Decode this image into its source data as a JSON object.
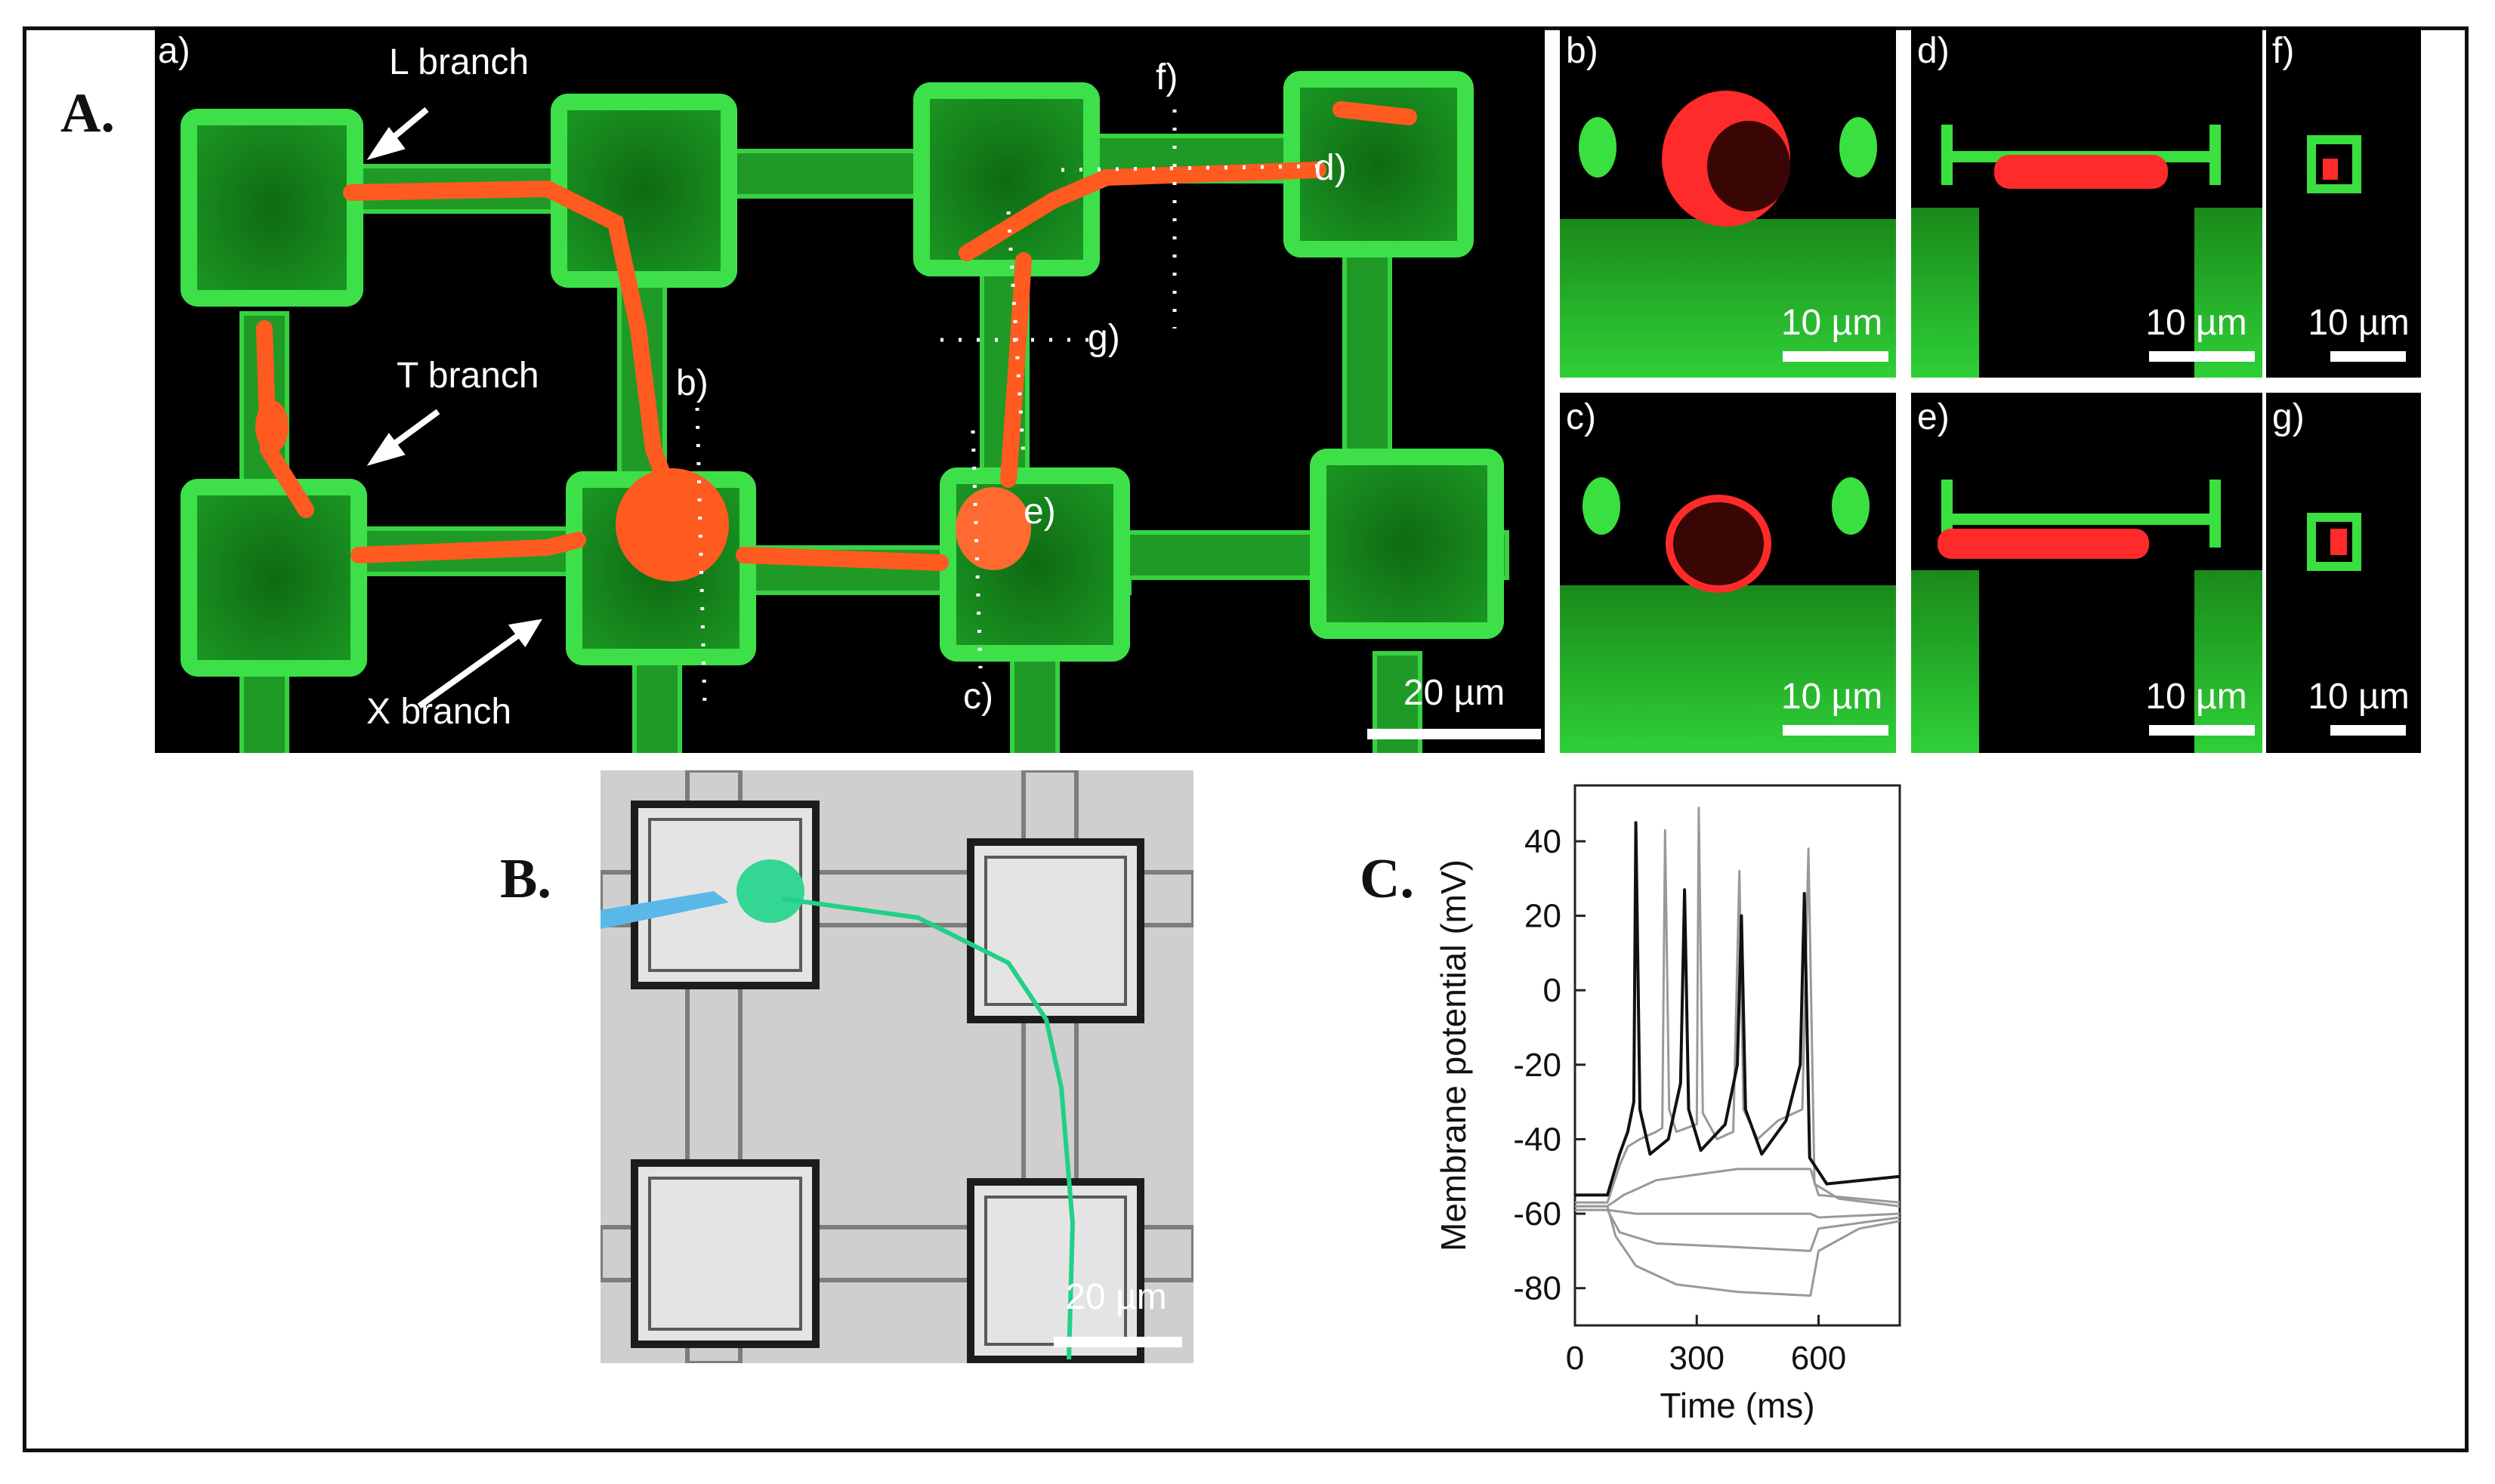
{
  "panels": {
    "A": {
      "letter": "A.",
      "sublabels": [
        "a)",
        "b)",
        "c)",
        "d)",
        "e)",
        "f)",
        "g)"
      ],
      "branch_labels": [
        "L branch",
        "T branch",
        "X branch"
      ],
      "main_scale": "20 µm",
      "inset_scale": "10 µm",
      "colors": {
        "scaffold": "#2ecc3a",
        "neuron": "#ff4a1c",
        "background": "#000000"
      }
    },
    "B": {
      "letter": "B.",
      "scale": "20 µm",
      "colors": {
        "trace": "#22d088",
        "pipette": "#5ab8e8"
      }
    },
    "C": {
      "letter": "C."
    }
  },
  "chart_data": {
    "type": "line",
    "xlabel": "Time (ms)",
    "ylabel": "Membrane potential (mV)",
    "xlim": [
      0,
      800
    ],
    "ylim": [
      -90,
      55
    ],
    "xticks": [
      0,
      300,
      600
    ],
    "yticks": [
      40,
      20,
      0,
      -20,
      -40,
      -60,
      -80
    ],
    "series": [
      {
        "color": "#999999",
        "points": [
          [
            0,
            -58
          ],
          [
            80,
            -58
          ],
          [
            100,
            -66
          ],
          [
            150,
            -74
          ],
          [
            250,
            -79
          ],
          [
            400,
            -81
          ],
          [
            580,
            -82
          ],
          [
            600,
            -70
          ],
          [
            700,
            -64
          ],
          [
            800,
            -62
          ]
        ]
      },
      {
        "color": "#999999",
        "points": [
          [
            0,
            -59
          ],
          [
            80,
            -59
          ],
          [
            110,
            -65
          ],
          [
            200,
            -68
          ],
          [
            400,
            -69
          ],
          [
            580,
            -70
          ],
          [
            600,
            -64
          ],
          [
            800,
            -61
          ]
        ]
      },
      {
        "color": "#999999",
        "points": [
          [
            0,
            -59
          ],
          [
            80,
            -59
          ],
          [
            150,
            -60
          ],
          [
            300,
            -60
          ],
          [
            580,
            -60
          ],
          [
            600,
            -61
          ],
          [
            800,
            -60
          ]
        ]
      },
      {
        "color": "#999999",
        "points": [
          [
            0,
            -58
          ],
          [
            80,
            -58
          ],
          [
            120,
            -55
          ],
          [
            200,
            -51
          ],
          [
            400,
            -48
          ],
          [
            580,
            -48
          ],
          [
            600,
            -55
          ],
          [
            800,
            -57
          ]
        ]
      },
      {
        "color": "#999999",
        "points": [
          [
            0,
            -57
          ],
          [
            80,
            -57
          ],
          [
            110,
            -47
          ],
          [
            130,
            -42
          ],
          [
            160,
            -40
          ],
          [
            200,
            -38
          ],
          [
            215,
            -37
          ],
          [
            222,
            43
          ],
          [
            232,
            -32
          ],
          [
            250,
            -38
          ],
          [
            300,
            -36
          ],
          [
            305,
            49
          ],
          [
            315,
            -33
          ],
          [
            350,
            -40
          ],
          [
            390,
            -38
          ],
          [
            405,
            32
          ],
          [
            415,
            -32
          ],
          [
            450,
            -40
          ],
          [
            500,
            -35
          ],
          [
            560,
            -32
          ],
          [
            575,
            38
          ],
          [
            590,
            -52
          ],
          [
            650,
            -56
          ],
          [
            800,
            -58
          ]
        ]
      },
      {
        "color": "#111111",
        "points": [
          [
            0,
            -55
          ],
          [
            80,
            -55
          ],
          [
            110,
            -44
          ],
          [
            130,
            -38
          ],
          [
            145,
            -30
          ],
          [
            150,
            45
          ],
          [
            160,
            -32
          ],
          [
            185,
            -44
          ],
          [
            230,
            -40
          ],
          [
            260,
            -25
          ],
          [
            270,
            27
          ],
          [
            280,
            -32
          ],
          [
            310,
            -43
          ],
          [
            370,
            -36
          ],
          [
            400,
            -20
          ],
          [
            410,
            20
          ],
          [
            420,
            -32
          ],
          [
            460,
            -44
          ],
          [
            520,
            -35
          ],
          [
            555,
            -20
          ],
          [
            565,
            26
          ],
          [
            578,
            -45
          ],
          [
            620,
            -52
          ],
          [
            800,
            -50
          ]
        ]
      }
    ]
  }
}
